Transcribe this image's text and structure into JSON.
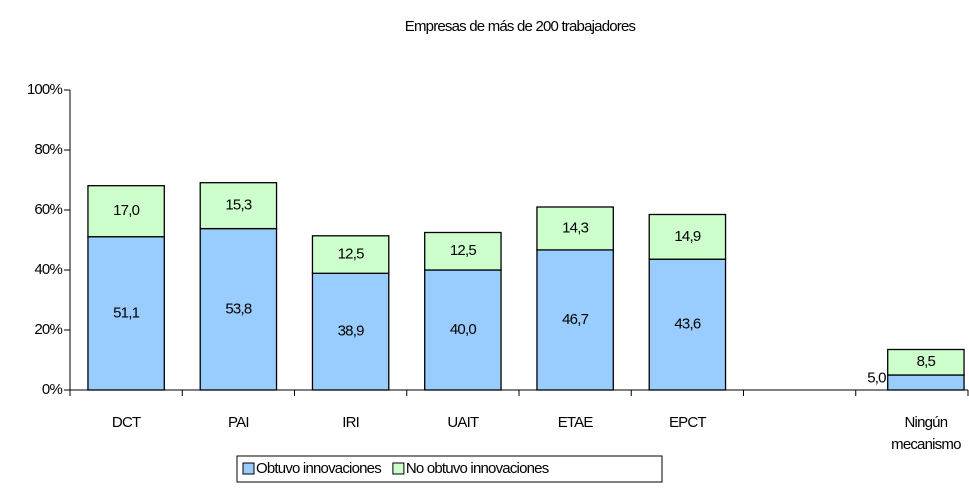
{
  "chart_data": {
    "type": "stacked_bar",
    "title": "Empresas de más de 200 trabajadores",
    "categories": [
      "DCT",
      "PAI",
      "IRI",
      "UAIT",
      "ETAE",
      "EPCT",
      null,
      "Ningún mecanismo"
    ],
    "series": [
      {
        "name": "Obtuvo innovaciones",
        "color": "#99ccff",
        "values": [
          51.1,
          53.8,
          38.9,
          40.0,
          46.7,
          43.6,
          null,
          5.0
        ],
        "value_labels": [
          "51,1",
          "53,8",
          "38,9",
          "40,0",
          "46,7",
          "43,6",
          null,
          "5,0"
        ]
      },
      {
        "name": "No obtuvo innovaciones",
        "color": "#ccffcc",
        "values": [
          17.0,
          15.3,
          12.5,
          12.5,
          14.3,
          14.9,
          null,
          8.5
        ],
        "value_labels": [
          "17,0",
          "15,3",
          "12,5",
          "12,5",
          "14,3",
          "14,9",
          null,
          "8,5"
        ]
      }
    ],
    "ylim": [
      0,
      100
    ],
    "yticks": [
      {
        "value": 0,
        "label": "0%"
      },
      {
        "value": 20,
        "label": "20%"
      },
      {
        "value": 40,
        "label": "40%"
      },
      {
        "value": 60,
        "label": "60%"
      },
      {
        "value": 80,
        "label": "80%"
      },
      {
        "value": 100,
        "label": "100%"
      }
    ],
    "grid": false,
    "legend": "bottom"
  }
}
